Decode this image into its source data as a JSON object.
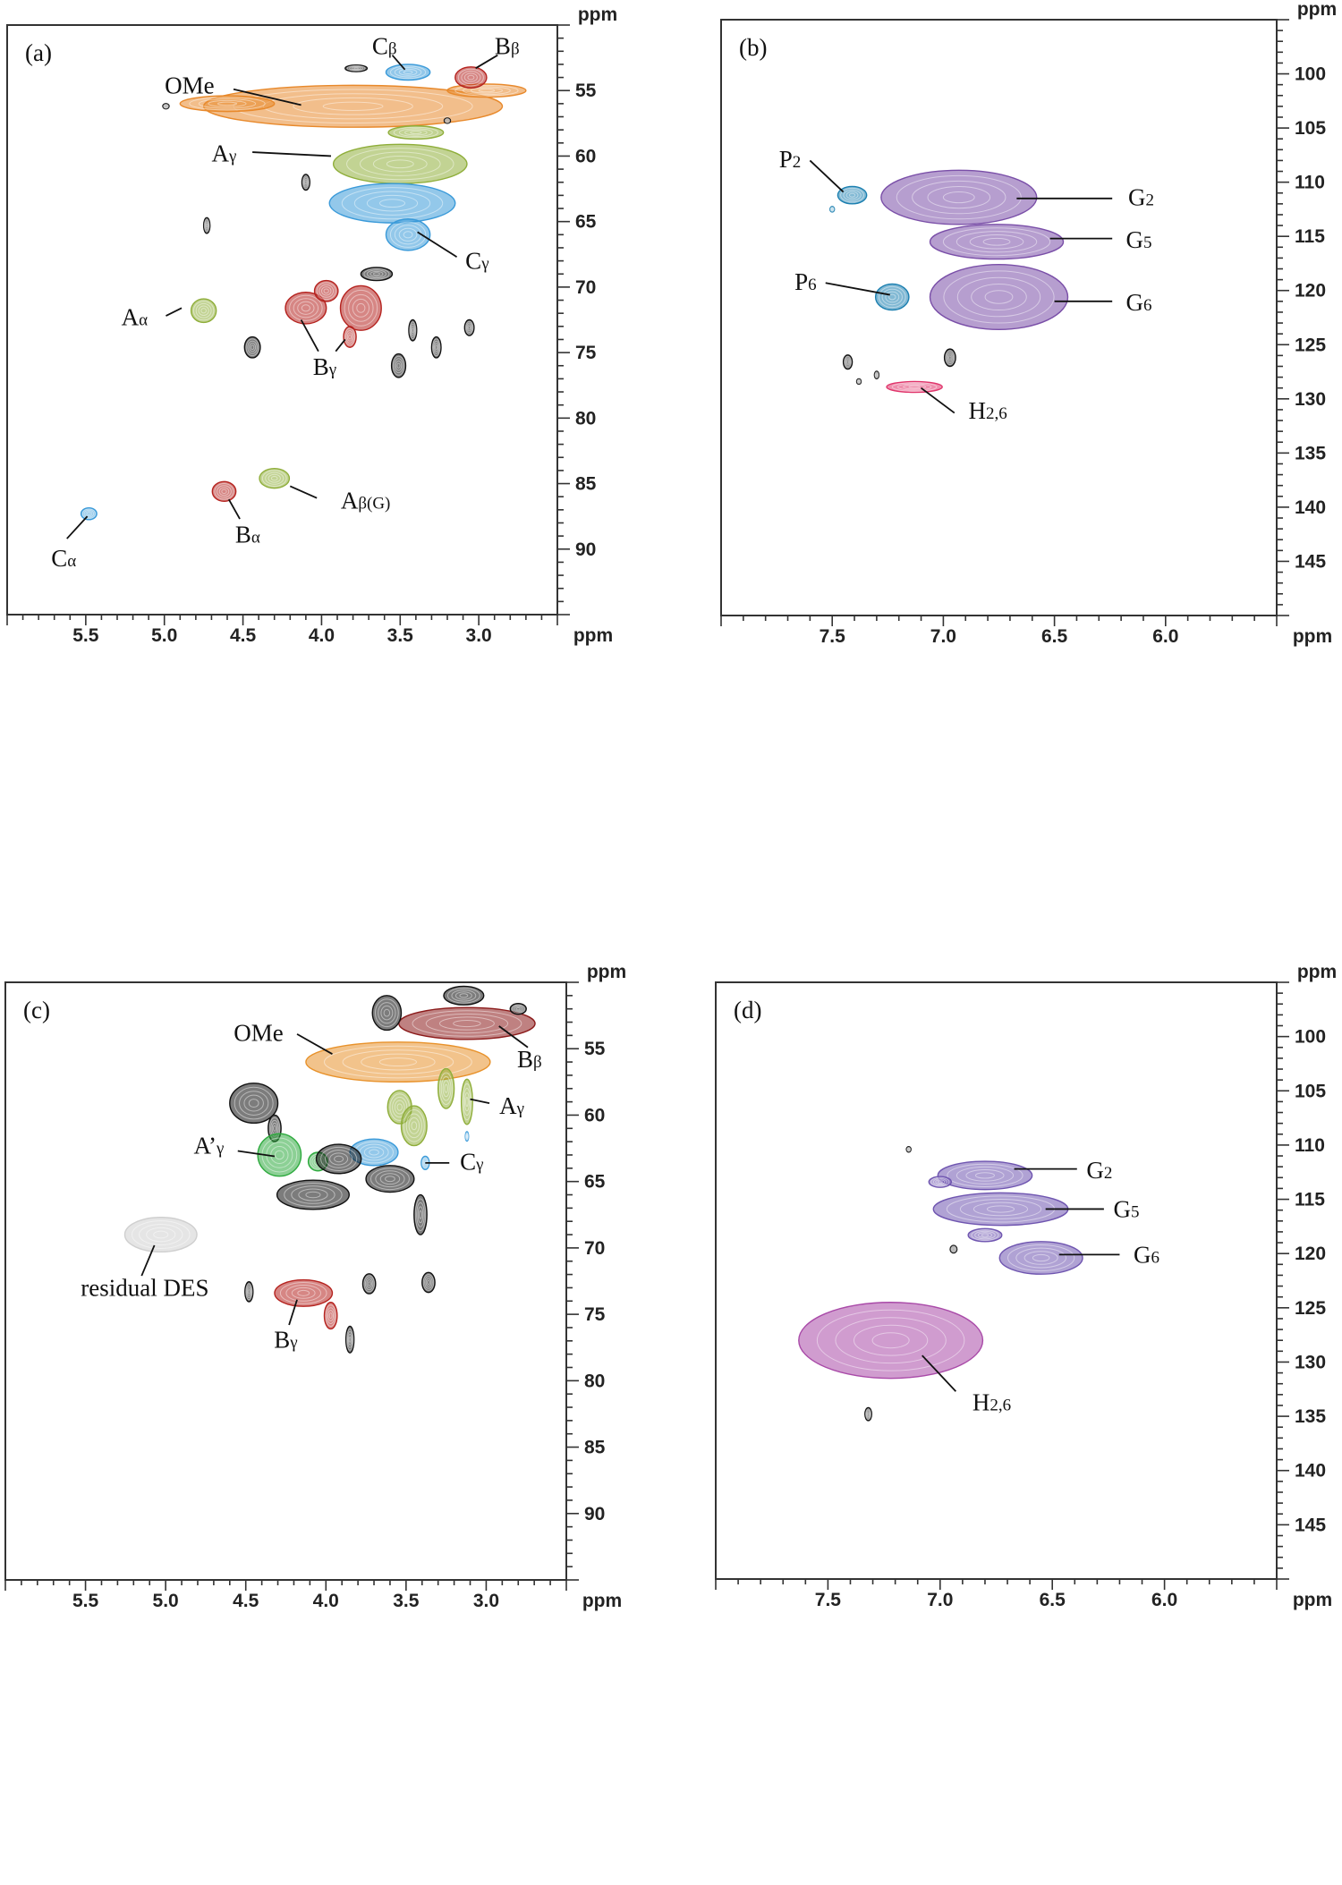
{
  "chart_data": [
    {
      "panel": "(a)",
      "type": "heatmap",
      "subtype": "2D HSQC NMR contour plot",
      "x_unit": "ppm",
      "y_unit": "ppm",
      "xlim": [
        6.0,
        2.5
      ],
      "ylim": [
        50,
        95
      ],
      "x_tick_labels": [
        "5.5",
        "5.0",
        "4.5",
        "4.0",
        "3.5",
        "3.0"
      ],
      "y_tick_labels": [
        "55",
        "60",
        "65",
        "70",
        "75",
        "80",
        "85",
        "90"
      ],
      "x_minor_step": 0.1,
      "y_minor_step": 1,
      "peaks": [
        {
          "x": 3.8,
          "y": 56.2,
          "w": 1.9,
          "h": 3.2,
          "color": "#e8892b"
        },
        {
          "x": 4.6,
          "y": 56.0,
          "w": 0.6,
          "h": 1.2,
          "color": "#e8892b"
        },
        {
          "x": 2.95,
          "y": 55.0,
          "w": 0.5,
          "h": 1.0,
          "color": "#e8892b"
        },
        {
          "x": 3.45,
          "y": 53.6,
          "w": 0.28,
          "h": 1.2,
          "color": "#3a9ad9"
        },
        {
          "x": 3.05,
          "y": 54.0,
          "w": 0.2,
          "h": 1.6,
          "color": "#b5231f"
        },
        {
          "x": 3.78,
          "y": 53.3,
          "w": 0.14,
          "h": 0.5,
          "color": "#111111"
        },
        {
          "x": 3.5,
          "y": 60.6,
          "w": 0.85,
          "h": 3.0,
          "color": "#8fae3a"
        },
        {
          "x": 3.4,
          "y": 58.2,
          "w": 0.35,
          "h": 1.0,
          "color": "#8fae3a"
        },
        {
          "x": 3.55,
          "y": 63.6,
          "w": 0.8,
          "h": 3.0,
          "color": "#3a9ad9"
        },
        {
          "x": 3.45,
          "y": 66.0,
          "w": 0.28,
          "h": 2.4,
          "color": "#3a9ad9"
        },
        {
          "x": 4.75,
          "y": 71.8,
          "w": 0.16,
          "h": 1.8,
          "color": "#8fae3a"
        },
        {
          "x": 4.1,
          "y": 71.6,
          "w": 0.26,
          "h": 2.4,
          "color": "#b5231f"
        },
        {
          "x": 3.97,
          "y": 70.3,
          "w": 0.15,
          "h": 1.6,
          "color": "#b5231f"
        },
        {
          "x": 3.75,
          "y": 71.6,
          "w": 0.26,
          "h": 3.4,
          "color": "#b5231f"
        },
        {
          "x": 3.82,
          "y": 73.8,
          "w": 0.08,
          "h": 1.6,
          "color": "#b5231f"
        },
        {
          "x": 4.1,
          "y": 62.0,
          "w": 0.05,
          "h": 1.2,
          "color": "#111111"
        },
        {
          "x": 4.73,
          "y": 65.3,
          "w": 0.04,
          "h": 1.2,
          "color": "#111111"
        },
        {
          "x": 4.44,
          "y": 74.6,
          "w": 0.1,
          "h": 1.6,
          "color": "#111111"
        },
        {
          "x": 3.51,
          "y": 76.0,
          "w": 0.09,
          "h": 1.8,
          "color": "#111111"
        },
        {
          "x": 3.27,
          "y": 74.6,
          "w": 0.06,
          "h": 1.6,
          "color": "#111111"
        },
        {
          "x": 3.06,
          "y": 73.1,
          "w": 0.06,
          "h": 1.2,
          "color": "#111111"
        },
        {
          "x": 3.42,
          "y": 73.3,
          "w": 0.05,
          "h": 1.6,
          "color": "#111111"
        },
        {
          "x": 3.2,
          "y": 57.3,
          "w": 0.04,
          "h": 0.4,
          "color": "#111111"
        },
        {
          "x": 4.99,
          "y": 56.2,
          "w": 0.04,
          "h": 0.4,
          "color": "#111111"
        },
        {
          "x": 3.65,
          "y": 69.0,
          "w": 0.2,
          "h": 1.0,
          "color": "#111111"
        },
        {
          "x": 4.62,
          "y": 85.6,
          "w": 0.15,
          "h": 1.5,
          "color": "#b5231f"
        },
        {
          "x": 4.3,
          "y": 84.6,
          "w": 0.19,
          "h": 1.5,
          "color": "#8fae3a"
        },
        {
          "x": 5.48,
          "y": 87.3,
          "w": 0.1,
          "h": 0.9,
          "color": "#3a9ad9"
        }
      ],
      "labels": [
        {
          "text": "OMe",
          "sub": "",
          "x": 4.84,
          "y": 54.6,
          "lines": [
            [
              4.56,
              54.9,
              4.13,
              56.1
            ]
          ]
        },
        {
          "text": "C",
          "sub": "β",
          "x": 3.6,
          "y": 51.6,
          "lines": [
            [
              3.55,
              52.3,
              3.47,
              53.4
            ]
          ]
        },
        {
          "text": "B",
          "sub": "β",
          "x": 2.82,
          "y": 51.6,
          "lines": [
            [
              2.88,
              52.3,
              3.02,
              53.3
            ]
          ]
        },
        {
          "text": "A",
          "sub": "γ",
          "x": 4.62,
          "y": 59.8,
          "lines": [
            [
              4.44,
              59.7,
              3.94,
              60.0
            ]
          ]
        },
        {
          "text": "C",
          "sub": "γ",
          "x": 3.01,
          "y": 68.0,
          "lines": [
            [
              3.14,
              67.7,
              3.39,
              65.8
            ]
          ]
        },
        {
          "text": "A",
          "sub": "α",
          "x": 5.19,
          "y": 72.3,
          "lines": [
            [
              4.99,
              72.2,
              4.89,
              71.6
            ]
          ]
        },
        {
          "text": "B",
          "sub": "γ",
          "x": 3.98,
          "y": 76.1,
          "lines": [
            [
              4.02,
              74.9,
              4.13,
              72.5
            ],
            [
              3.91,
              74.9,
              3.85,
              74.0
            ]
          ]
        },
        {
          "text": "B",
          "sub": "α",
          "x": 4.47,
          "y": 88.9,
          "lines": [
            [
              4.52,
              87.7,
              4.59,
              86.2
            ]
          ]
        },
        {
          "text": "A",
          "sub": "β(G)",
          "x": 3.72,
          "y": 86.3,
          "lines": [
            [
              4.03,
              86.1,
              4.2,
              85.2
            ]
          ]
        },
        {
          "text": "C",
          "sub": "α",
          "x": 5.64,
          "y": 90.7,
          "lines": [
            [
              5.62,
              89.2,
              5.49,
              87.5
            ]
          ]
        }
      ]
    },
    {
      "panel": "(b)",
      "type": "heatmap",
      "subtype": "2D HSQC NMR contour plot",
      "x_unit": "ppm",
      "y_unit": "ppm",
      "xlim": [
        8.0,
        5.5
      ],
      "ylim": [
        95,
        150
      ],
      "x_tick_labels": [
        "7.5",
        "7.0",
        "6.5",
        "6.0"
      ],
      "y_tick_labels": [
        "100",
        "105",
        "110",
        "115",
        "120",
        "125",
        "130",
        "135",
        "140",
        "145"
      ],
      "x_minor_step": 0.1,
      "y_minor_step": 1,
      "peaks": [
        {
          "x": 7.41,
          "y": 111.2,
          "w": 0.13,
          "h": 1.6,
          "color": "#1b7fb0"
        },
        {
          "x": 7.5,
          "y": 112.5,
          "w": 0.02,
          "h": 0.5,
          "color": "#1b7fb0"
        },
        {
          "x": 6.93,
          "y": 111.4,
          "w": 0.7,
          "h": 5.0,
          "color": "#7a4fa8"
        },
        {
          "x": 6.76,
          "y": 115.5,
          "w": 0.6,
          "h": 3.2,
          "color": "#7a4fa8"
        },
        {
          "x": 6.75,
          "y": 120.6,
          "w": 0.62,
          "h": 6.0,
          "color": "#7a4fa8"
        },
        {
          "x": 7.23,
          "y": 120.6,
          "w": 0.15,
          "h": 2.4,
          "color": "#1b7fb0"
        },
        {
          "x": 7.13,
          "y": 128.9,
          "w": 0.25,
          "h": 1.0,
          "color": "#e0336a"
        },
        {
          "x": 7.43,
          "y": 126.6,
          "w": 0.04,
          "h": 1.3,
          "color": "#111111"
        },
        {
          "x": 6.97,
          "y": 126.2,
          "w": 0.05,
          "h": 1.6,
          "color": "#111111"
        },
        {
          "x": 7.38,
          "y": 128.4,
          "w": 0.02,
          "h": 0.5,
          "color": "#111111"
        },
        {
          "x": 7.3,
          "y": 127.8,
          "w": 0.02,
          "h": 0.7,
          "color": "#111111"
        }
      ],
      "labels": [
        {
          "text": "P",
          "sub": "2",
          "x": 7.69,
          "y": 107.9,
          "lines": [
            [
              7.6,
              108.0,
              7.45,
              110.9
            ]
          ]
        },
        {
          "text": "G",
          "sub": "2",
          "x": 6.11,
          "y": 111.4,
          "lines": [
            [
              6.24,
              111.5,
              6.67,
              111.5
            ]
          ]
        },
        {
          "text": "G",
          "sub": "5",
          "x": 6.12,
          "y": 115.3,
          "lines": [
            [
              6.24,
              115.2,
              6.52,
              115.2
            ]
          ]
        },
        {
          "text": "G",
          "sub": "6",
          "x": 6.12,
          "y": 121.1,
          "lines": [
            [
              6.24,
              121.0,
              6.5,
              121.0
            ]
          ]
        },
        {
          "text": "P",
          "sub": "6",
          "x": 7.62,
          "y": 119.2,
          "lines": [
            [
              7.53,
              119.3,
              7.24,
              120.4
            ]
          ]
        },
        {
          "text": "H",
          "sub": "2,6",
          "x": 6.8,
          "y": 131.1,
          "lines": [
            [
              6.95,
              131.3,
              7.1,
              129.0
            ]
          ]
        }
      ]
    },
    {
      "panel": "(c)",
      "type": "heatmap",
      "subtype": "2D HSQC NMR contour plot",
      "x_unit": "ppm",
      "y_unit": "ppm",
      "xlim": [
        6.0,
        2.5
      ],
      "ylim": [
        50,
        95
      ],
      "x_tick_labels": [
        "5.5",
        "5.0",
        "4.5",
        "4.0",
        "3.5",
        "3.0"
      ],
      "y_tick_labels": [
        "55",
        "60",
        "65",
        "70",
        "75",
        "80",
        "85",
        "90"
      ],
      "x_minor_step": 0.1,
      "y_minor_step": 1,
      "peaks": [
        {
          "x": 3.12,
          "y": 53.1,
          "w": 0.85,
          "h": 2.4,
          "color": "#8b1a1a"
        },
        {
          "x": 3.55,
          "y": 56.0,
          "w": 1.15,
          "h": 3.0,
          "color": "#e8922b"
        },
        {
          "x": 3.62,
          "y": 52.3,
          "w": 0.18,
          "h": 2.6,
          "color": "#111111"
        },
        {
          "x": 3.14,
          "y": 51.0,
          "w": 0.25,
          "h": 1.4,
          "color": "#111111"
        },
        {
          "x": 2.8,
          "y": 52.0,
          "w": 0.1,
          "h": 0.8,
          "color": "#111111"
        },
        {
          "x": 4.45,
          "y": 59.1,
          "w": 0.3,
          "h": 3.0,
          "color": "#111111"
        },
        {
          "x": 4.32,
          "y": 61.0,
          "w": 0.08,
          "h": 2.0,
          "color": "#111111"
        },
        {
          "x": 3.54,
          "y": 59.4,
          "w": 0.15,
          "h": 2.5,
          "color": "#8fae3a"
        },
        {
          "x": 3.45,
          "y": 60.8,
          "w": 0.16,
          "h": 3.0,
          "color": "#8fae3a"
        },
        {
          "x": 3.25,
          "y": 58.0,
          "w": 0.1,
          "h": 3.0,
          "color": "#8fae3a"
        },
        {
          "x": 3.12,
          "y": 59.0,
          "w": 0.07,
          "h": 3.4,
          "color": "#8fae3a"
        },
        {
          "x": 4.29,
          "y": 63.0,
          "w": 0.27,
          "h": 3.2,
          "color": "#2eaa3e"
        },
        {
          "x": 4.05,
          "y": 63.5,
          "w": 0.12,
          "h": 1.4,
          "color": "#2eaa3e"
        },
        {
          "x": 3.7,
          "y": 62.8,
          "w": 0.3,
          "h": 2.0,
          "color": "#3a9ad9"
        },
        {
          "x": 3.38,
          "y": 63.6,
          "w": 0.05,
          "h": 1.0,
          "color": "#3a9ad9"
        },
        {
          "x": 3.12,
          "y": 61.6,
          "w": 0.02,
          "h": 0.7,
          "color": "#3a9ad9"
        },
        {
          "x": 3.92,
          "y": 63.3,
          "w": 0.28,
          "h": 2.2,
          "color": "#111111"
        },
        {
          "x": 3.6,
          "y": 64.8,
          "w": 0.3,
          "h": 2.0,
          "color": "#111111"
        },
        {
          "x": 4.08,
          "y": 66.0,
          "w": 0.45,
          "h": 2.2,
          "color": "#111111"
        },
        {
          "x": 3.41,
          "y": 67.5,
          "w": 0.08,
          "h": 3.0,
          "color": "#111111"
        },
        {
          "x": 5.03,
          "y": 69.0,
          "w": 0.45,
          "h": 2.6,
          "color": "#cfcfcf"
        },
        {
          "x": 4.14,
          "y": 73.4,
          "w": 0.36,
          "h": 2.0,
          "color": "#b5231f"
        },
        {
          "x": 3.97,
          "y": 75.1,
          "w": 0.08,
          "h": 2.0,
          "color": "#b5231f"
        },
        {
          "x": 4.48,
          "y": 73.3,
          "w": 0.05,
          "h": 1.5,
          "color": "#111111"
        },
        {
          "x": 3.73,
          "y": 72.7,
          "w": 0.08,
          "h": 1.5,
          "color": "#111111"
        },
        {
          "x": 3.36,
          "y": 72.6,
          "w": 0.08,
          "h": 1.5,
          "color": "#111111"
        },
        {
          "x": 3.85,
          "y": 76.9,
          "w": 0.05,
          "h": 2.0,
          "color": "#111111"
        }
      ],
      "labels": [
        {
          "text": "OMe",
          "sub": "",
          "x": 4.42,
          "y": 53.8,
          "lines": [
            [
              4.18,
              53.9,
              3.96,
              55.4
            ]
          ]
        },
        {
          "text": "B",
          "sub": "β",
          "x": 2.73,
          "y": 55.8,
          "lines": [
            [
              2.74,
              54.9,
              2.92,
              53.3
            ]
          ]
        },
        {
          "text": "A",
          "sub": "γ",
          "x": 2.84,
          "y": 59.3,
          "lines": [
            [
              2.98,
              59.1,
              3.1,
              58.8
            ]
          ]
        },
        {
          "text": "A’",
          "sub": "γ",
          "x": 4.73,
          "y": 62.3,
          "lines": [
            [
              4.55,
              62.7,
              4.32,
              63.1
            ]
          ]
        },
        {
          "text": "C",
          "sub": "γ",
          "x": 3.09,
          "y": 63.5,
          "lines": [
            [
              3.23,
              63.6,
              3.38,
              63.6
            ]
          ]
        },
        {
          "text": "residual DES",
          "sub": "",
          "x": 5.13,
          "y": 73.0,
          "lines": [
            [
              5.15,
              72.1,
              5.07,
              69.8
            ]
          ]
        },
        {
          "text": "B",
          "sub": "γ",
          "x": 4.25,
          "y": 76.9,
          "lines": [
            [
              4.23,
              75.8,
              4.18,
              73.9
            ]
          ]
        }
      ]
    },
    {
      "panel": "(d)",
      "type": "heatmap",
      "subtype": "2D HSQC NMR contour plot",
      "x_unit": "ppm",
      "y_unit": "ppm",
      "xlim": [
        8.0,
        5.5
      ],
      "ylim": [
        95,
        150
      ],
      "x_tick_labels": [
        "7.5",
        "7.0",
        "6.5",
        "6.0"
      ],
      "y_tick_labels": [
        "100",
        "105",
        "110",
        "115",
        "120",
        "125",
        "130",
        "135",
        "140",
        "145"
      ],
      "x_minor_step": 0.1,
      "y_minor_step": 1,
      "peaks": [
        {
          "x": 6.8,
          "y": 112.8,
          "w": 0.42,
          "h": 2.6,
          "color": "#6f55b0"
        },
        {
          "x": 7.0,
          "y": 113.4,
          "w": 0.1,
          "h": 1.0,
          "color": "#6f55b0"
        },
        {
          "x": 6.73,
          "y": 115.9,
          "w": 0.6,
          "h": 3.0,
          "color": "#6f55b0"
        },
        {
          "x": 6.8,
          "y": 118.3,
          "w": 0.15,
          "h": 1.2,
          "color": "#6f55b0"
        },
        {
          "x": 6.55,
          "y": 120.4,
          "w": 0.37,
          "h": 3.0,
          "color": "#6f55b0"
        },
        {
          "x": 7.22,
          "y": 128.0,
          "w": 0.82,
          "h": 7.0,
          "color": "#a94aa8"
        },
        {
          "x": 7.14,
          "y": 110.4,
          "w": 0.02,
          "h": 0.5,
          "color": "#111111"
        },
        {
          "x": 6.94,
          "y": 119.6,
          "w": 0.03,
          "h": 0.7,
          "color": "#111111"
        },
        {
          "x": 7.32,
          "y": 134.8,
          "w": 0.03,
          "h": 1.2,
          "color": "#111111"
        }
      ],
      "labels": [
        {
          "text": "G",
          "sub": "2",
          "x": 6.29,
          "y": 112.3,
          "lines": [
            [
              6.39,
              112.2,
              6.67,
              112.2
            ]
          ]
        },
        {
          "text": "G",
          "sub": "5",
          "x": 6.17,
          "y": 115.9,
          "lines": [
            [
              6.27,
              115.9,
              6.53,
              115.9
            ]
          ]
        },
        {
          "text": "G",
          "sub": "6",
          "x": 6.08,
          "y": 120.1,
          "lines": [
            [
              6.2,
              120.1,
              6.47,
              120.1
            ]
          ]
        },
        {
          "text": "H",
          "sub": "2,6",
          "x": 6.77,
          "y": 133.7,
          "lines": [
            [
              6.93,
              132.7,
              7.08,
              129.4
            ]
          ]
        }
      ]
    }
  ]
}
